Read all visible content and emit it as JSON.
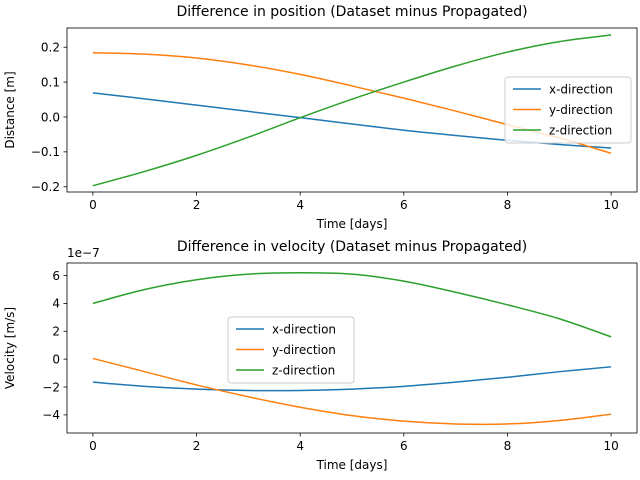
{
  "chart_data": [
    {
      "type": "line",
      "title": "Difference in position (Dataset minus Propagated)",
      "xlabel": "Time [days]",
      "ylabel": "Distance [m]",
      "xlim": [
        -0.5,
        10.5
      ],
      "ylim": [
        -0.215,
        0.255
      ],
      "xticks": [
        0,
        2,
        4,
        6,
        8,
        10
      ],
      "xtick_labels": [
        "0",
        "2",
        "4",
        "6",
        "8",
        "10"
      ],
      "yticks": [
        -0.2,
        -0.1,
        0.0,
        0.1,
        0.2
      ],
      "ytick_labels": [
        "−0.2",
        "−0.1",
        "0.0",
        "0.1",
        "0.2"
      ],
      "legend_position": "center-right",
      "x": [
        0,
        1,
        2,
        3,
        4,
        5,
        6,
        7,
        8,
        9,
        10
      ],
      "series": [
        {
          "name": "x-direction",
          "color": "#1f77b4",
          "values": [
            0.069,
            0.052,
            0.034,
            0.016,
            -0.002,
            -0.02,
            -0.038,
            -0.053,
            -0.067,
            -0.079,
            -0.089
          ]
        },
        {
          "name": "y-direction",
          "color": "#ff7f0e",
          "values": [
            0.184,
            0.18,
            0.169,
            0.149,
            0.122,
            0.089,
            0.054,
            0.017,
            -0.022,
            -0.06,
            -0.104
          ]
        },
        {
          "name": "z-direction",
          "color": "#2ca02c",
          "values": [
            -0.197,
            -0.156,
            -0.11,
            -0.058,
            -0.002,
            0.051,
            0.1,
            0.146,
            0.186,
            0.216,
            0.235
          ]
        }
      ]
    },
    {
      "type": "line",
      "title": "Difference in velocity (Dataset minus Propagated)",
      "xlabel": "Time [days]",
      "ylabel": "Velocity [m/s]",
      "offset_text": "1e−7",
      "xlim": [
        -0.5,
        10.5
      ],
      "ylim": [
        -5.3,
        6.9
      ],
      "xticks": [
        0,
        2,
        4,
        6,
        8,
        10
      ],
      "xtick_labels": [
        "0",
        "2",
        "4",
        "6",
        "8",
        "10"
      ],
      "yticks": [
        -4,
        -2,
        0,
        2,
        4,
        6
      ],
      "ytick_labels": [
        "−4",
        "−2",
        "0",
        "2",
        "4",
        "6"
      ],
      "legend_position": "center",
      "x": [
        0,
        1,
        2,
        3,
        4,
        5,
        6,
        7,
        8,
        9,
        10
      ],
      "series": [
        {
          "name": "x-direction",
          "color": "#1f77b4",
          "values": [
            -1.65,
            -1.95,
            -2.15,
            -2.25,
            -2.25,
            -2.15,
            -1.95,
            -1.65,
            -1.3,
            -0.9,
            -0.55
          ]
        },
        {
          "name": "y-direction",
          "color": "#ff7f0e",
          "values": [
            0.05,
            -0.9,
            -1.85,
            -2.7,
            -3.45,
            -4.05,
            -4.45,
            -4.65,
            -4.65,
            -4.4,
            -3.95
          ]
        },
        {
          "name": "z-direction",
          "color": "#2ca02c",
          "values": [
            4.0,
            5.0,
            5.7,
            6.1,
            6.2,
            6.1,
            5.6,
            4.8,
            3.9,
            2.9,
            1.6
          ]
        }
      ]
    }
  ]
}
